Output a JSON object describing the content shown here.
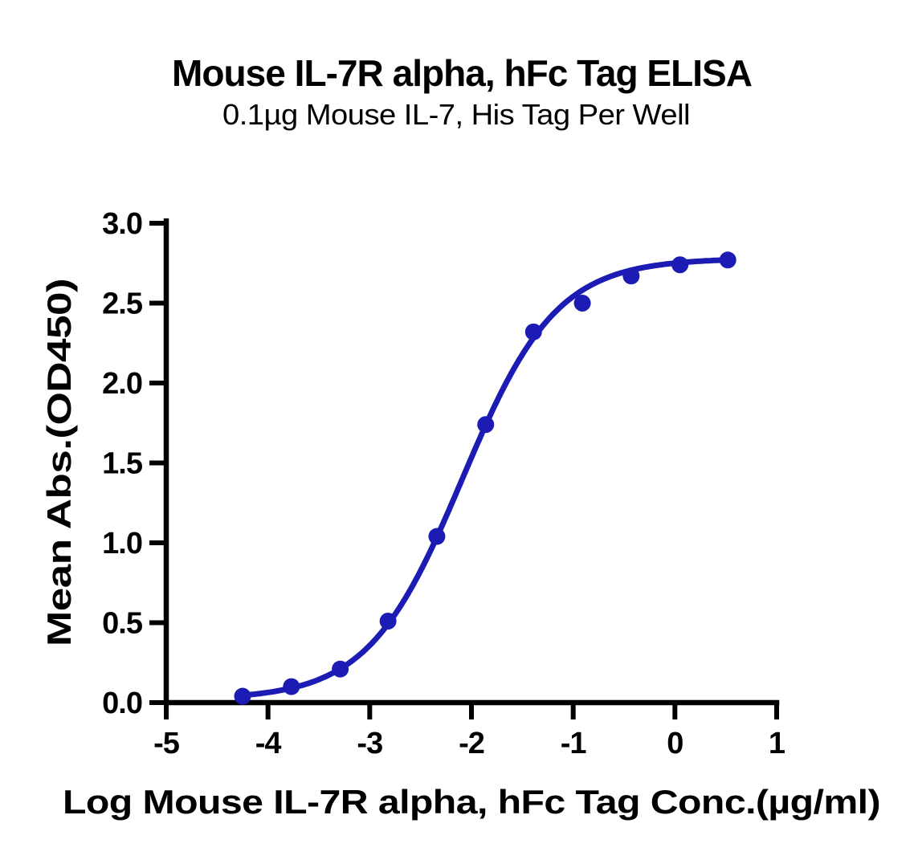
{
  "chart_data": {
    "type": "line",
    "title": "Mouse IL-7R alpha, hFc Tag ELISA",
    "subtitle": "0.1µg Mouse IL-7, His Tag Per Well",
    "xlabel": "Log Mouse IL-7R alpha, hFc Tag Conc.(µg/ml)",
    "ylabel": "Mean Abs.(OD450)",
    "xlim": [
      -5,
      1
    ],
    "ylim": [
      0,
      3
    ],
    "x_ticks": [
      {
        "label": "-5",
        "v": -5
      },
      {
        "label": "-4",
        "v": -4
      },
      {
        "label": "-3",
        "v": -3
      },
      {
        "label": "-2",
        "v": -2
      },
      {
        "label": "-1",
        "v": -1
      },
      {
        "label": "0",
        "v": 0
      },
      {
        "label": "1",
        "v": 1
      }
    ],
    "y_ticks": [
      {
        "label": "0.0",
        "v": 0.0
      },
      {
        "label": "0.5",
        "v": 0.5
      },
      {
        "label": "1.0",
        "v": 1.0
      },
      {
        "label": "1.5",
        "v": 1.5
      },
      {
        "label": "2.0",
        "v": 2.0
      },
      {
        "label": "2.5",
        "v": 2.5
      },
      {
        "label": "3.0",
        "v": 3.0
      }
    ],
    "grid": false,
    "legend": false,
    "series": [
      {
        "name": "Mouse IL-7R alpha, hFc Tag",
        "marker": "circle",
        "x": [
          -4.25,
          -3.77,
          -3.29,
          -2.82,
          -2.34,
          -1.86,
          -1.39,
          -0.91,
          -0.43,
          0.05,
          0.52
        ],
        "y": [
          0.04,
          0.1,
          0.21,
          0.51,
          1.04,
          1.74,
          2.32,
          2.5,
          2.67,
          2.74,
          2.77
        ]
      }
    ],
    "fit_curve": {
      "model": "4PL-sigmoid",
      "bottom": 0.02,
      "top": 2.78,
      "log_ec50": -2.09,
      "hill": 0.94
    }
  },
  "colors": {
    "curve": "#1C1CB4",
    "axis": "#000000",
    "text": "#000000",
    "background": "#FFFFFF"
  }
}
